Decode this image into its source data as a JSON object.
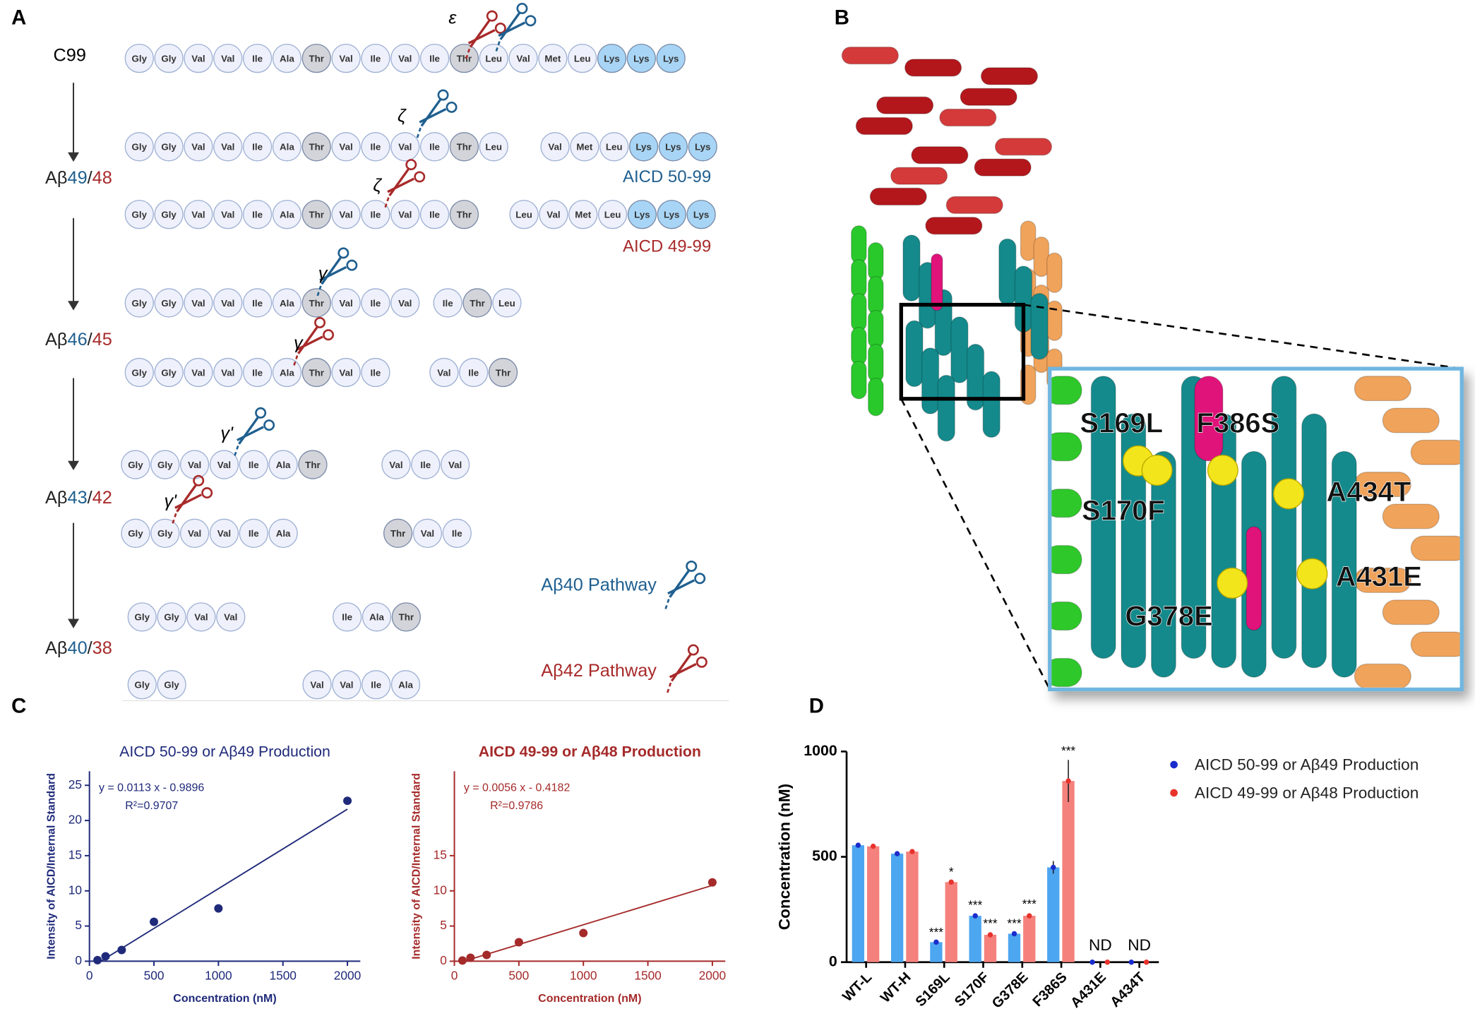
{
  "panel_a": {
    "label": "A",
    "start": "C99",
    "residue_colors": {
      "Thr": "#d3d4da",
      "Lys": "#a8d5f5"
    },
    "rows": [
      [
        [
          "Gly",
          "Gly",
          "Val",
          "Val",
          "Ile",
          "Ala",
          "Thr",
          "Val",
          "Ile",
          "Val",
          "Ile",
          "Thr",
          "Leu",
          "Val",
          "Met",
          "Leu",
          "Lys",
          "Lys",
          "Lys"
        ]
      ],
      [
        [
          "Gly",
          "Gly",
          "Val",
          "Val",
          "Ile",
          "Ala",
          "Thr",
          "Val",
          "Ile",
          "Val",
          "Ile",
          "Thr",
          "Leu"
        ],
        [
          "Val",
          "Met",
          "Leu",
          "Lys",
          "Lys",
          "Lys"
        ]
      ],
      [
        [
          "Gly",
          "Gly",
          "Val",
          "Val",
          "Ile",
          "Ala",
          "Thr",
          "Val",
          "Ile",
          "Val",
          "Ile",
          "Thr"
        ],
        [
          "Leu",
          "Val",
          "Met",
          "Leu",
          "Lys",
          "Lys",
          "Lys"
        ]
      ],
      [
        [
          "Gly",
          "Gly",
          "Val",
          "Val",
          "Ile",
          "Ala",
          "Thr",
          "Val",
          "Ile",
          "Val"
        ],
        [
          "Ile",
          "Thr",
          "Leu"
        ]
      ],
      [
        [
          "Gly",
          "Gly",
          "Val",
          "Val",
          "Ile",
          "Ala",
          "Thr",
          "Val",
          "Ile"
        ],
        [
          "Val",
          "Ile",
          "Thr"
        ]
      ],
      [
        [
          "Gly",
          "Gly",
          "Val",
          "Val",
          "Ile",
          "Ala",
          "Thr"
        ],
        [
          "Val",
          "Ile",
          "Val"
        ]
      ],
      [
        [
          "Gly",
          "Gly",
          "Val",
          "Val",
          "Ile",
          "Ala"
        ],
        [
          "Thr",
          "Val",
          "Ile"
        ]
      ],
      [
        [
          "Gly",
          "Gly",
          "Val",
          "Val"
        ],
        [
          "Ile",
          "Ala",
          "Thr"
        ]
      ],
      [
        [
          "Gly",
          "Gly"
        ],
        [
          "Val",
          "Val",
          "Ile",
          "Ala"
        ]
      ]
    ],
    "stages": [
      {
        "prefix": "Aβ",
        "first": "49",
        "sep": "/",
        "second": "48"
      },
      {
        "prefix": "Aβ",
        "first": "46",
        "sep": "/",
        "second": "45"
      },
      {
        "prefix": "Aβ",
        "first": "43",
        "sep": "/",
        "second": "42"
      },
      {
        "prefix": "Aβ",
        "first": "40",
        "sep": "/",
        "second": "38"
      }
    ],
    "cleavage_labels": [
      "ε",
      "ζ",
      "ζ",
      "γ",
      "γ",
      "γ'",
      "γ'"
    ],
    "products": [
      "AICD 50-99",
      "AICD 49-99"
    ],
    "pathways": [
      "Aβ40 Pathway",
      "Aβ42 Pathway"
    ],
    "colors": {
      "blue": "#1f5f8f",
      "red": "#a82a2a"
    }
  },
  "panel_b": {
    "label": "B",
    "mutations": [
      "S169L",
      "F386S",
      "S170F",
      "A434T",
      "A431E",
      "G378E"
    ]
  },
  "panel_c": {
    "label": "C",
    "charts": [
      {
        "type": "scatter",
        "title": "AICD 50-99 or Aβ49 Production",
        "equation": "y = 0.0113 x - 0.9896",
        "r2": "R²=0.9707",
        "x_label": "Concentration (nM)",
        "y_label": "Intensity of AICD/Internal Standard",
        "color": "#1f2a7a",
        "x": [
          62.5,
          125,
          250,
          500,
          1000,
          2000
        ],
        "y": [
          0.15,
          0.7,
          1.6,
          5.6,
          7.5,
          22.8
        ],
        "fit": {
          "x": [
            87.6,
            2000
          ],
          "y": [
            0,
            21.61
          ]
        },
        "xlim": [
          0,
          2100
        ],
        "ylim": [
          0,
          27
        ],
        "xticks": [
          0,
          500,
          1000,
          1500,
          2000
        ],
        "yticks": [
          0,
          5,
          10,
          15,
          20,
          25
        ]
      },
      {
        "type": "scatter",
        "title": "AICD 49-99 or Aβ48 Production",
        "equation": "y = 0.0056 x - 0.4182",
        "r2": "R²=0.9786",
        "x_label": "Concentration (nM)",
        "y_label": "Intensity of AICD/Internal Standard",
        "color": "#a52a2a",
        "x": [
          62.5,
          125,
          250,
          500,
          1000,
          2000
        ],
        "y": [
          0.1,
          0.5,
          0.9,
          2.7,
          4.0,
          11.2
        ],
        "fit": {
          "x": [
            74.7,
            2000
          ],
          "y": [
            0,
            10.78
          ]
        },
        "xlim": [
          0,
          2100
        ],
        "ylim": [
          0,
          27
        ],
        "xticks": [
          0,
          500,
          1000,
          1500,
          2000
        ],
        "yticks": [
          0,
          5,
          10,
          15
        ]
      }
    ]
  },
  "panel_d": {
    "label": "D",
    "chart": {
      "type": "bar",
      "y_label": "Concentration (nM)",
      "categories": [
        "WT-L",
        "WT-H",
        "S169L",
        "S170F",
        "G378E",
        "F386S",
        "A431E",
        "A434T"
      ],
      "series": [
        {
          "name": "AICD 50-99 or Aβ49 Production",
          "color": "#4da6f0",
          "point_color": "#1a2ccc",
          "values": [
            555,
            515,
            95,
            220,
            135,
            450,
            0,
            0
          ],
          "errors": [
            5,
            5,
            3,
            8,
            5,
            30,
            0,
            0
          ],
          "significance": [
            null,
            null,
            "***",
            "***",
            "***",
            null,
            null,
            null
          ]
        },
        {
          "name": "AICD 49-99 or Aβ48 Production",
          "color": "#f5817c",
          "point_color": "#e8332d",
          "values": [
            550,
            525,
            380,
            130,
            220,
            860,
            0,
            0
          ],
          "errors": [
            5,
            5,
            5,
            10,
            12,
            100,
            0,
            0
          ],
          "significance": [
            null,
            null,
            "*",
            "***",
            "***",
            "***",
            null,
            null
          ]
        }
      ],
      "notes": [
        null,
        null,
        null,
        null,
        null,
        null,
        "ND",
        "ND"
      ],
      "ylim": [
        0,
        1000
      ],
      "yticks": [
        0,
        500,
        1000
      ]
    }
  }
}
